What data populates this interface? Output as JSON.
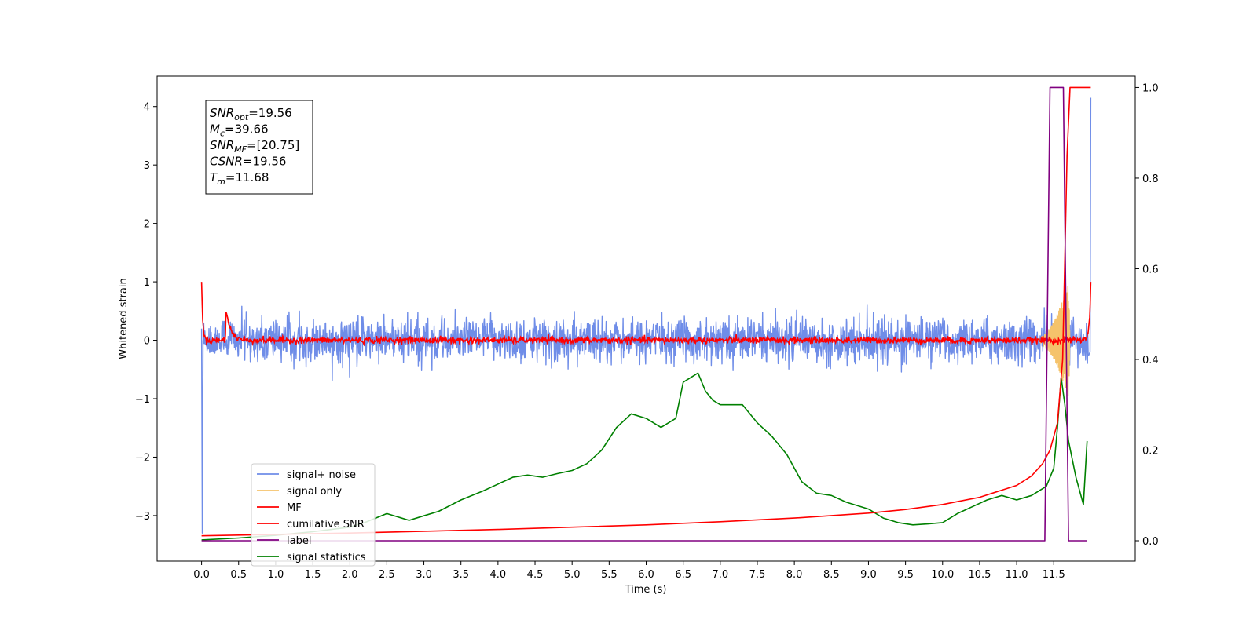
{
  "chart_data": {
    "type": "line",
    "xlabel": "Time (s)",
    "ylabel": "Whitened strain",
    "xlim": [
      -0.6,
      12.6
    ],
    "ylim": [
      -3.78,
      4.52
    ],
    "y2lim": [
      -0.045,
      1.025
    ],
    "x_ticks": [
      0.0,
      0.5,
      1.0,
      1.5,
      2.0,
      2.5,
      3.0,
      3.5,
      4.0,
      4.5,
      5.0,
      5.5,
      6.0,
      6.5,
      7.0,
      7.5,
      8.0,
      8.5,
      9.0,
      9.5,
      10.0,
      10.5,
      11.0,
      11.5
    ],
    "x_tick_labels": [
      "0.0",
      "0.5",
      "1.0",
      "1.5",
      "2.0",
      "2.5",
      "3.0",
      "3.5",
      "4.0",
      "4.5",
      "5.0",
      "5.5",
      "6.0",
      "6.5",
      "7.0",
      "7.5",
      "8.0",
      "8.5",
      "9.0",
      "9.5",
      "10.0",
      "10.5",
      "11.0",
      "11.5"
    ],
    "y_ticks": [
      -3,
      -2,
      -1,
      0,
      1,
      2,
      3,
      4
    ],
    "y_tick_labels": [
      "−3",
      "−2",
      "−1",
      "0",
      "1",
      "2",
      "3",
      "4"
    ],
    "y2_ticks": [
      0.0,
      0.2,
      0.4,
      0.6,
      0.8,
      1.0
    ],
    "y2_tick_labels": [
      "0.0",
      "0.2",
      "0.4",
      "0.6",
      "0.8",
      "1.0"
    ],
    "grid": false,
    "legend_position": "lower-left",
    "colors": {
      "signal_noise": "#6f8de8",
      "signal_only": "#f5c36b",
      "mf": "#ff0000",
      "cumulative_snr": "#ff0000",
      "label": "#800080",
      "signal_statistics": "#008000"
    },
    "annotation": {
      "lines": [
        {
          "main": "SNR",
          "sub": "opt",
          "value": "=19.56"
        },
        {
          "main": "M",
          "sub": "c",
          "value": "=39.66"
        },
        {
          "main": "SNR",
          "sub": "MF",
          "value": "=[20.75]"
        },
        {
          "main": "CSNR",
          "sub": "",
          "value": "=19.56"
        },
        {
          "main": "T",
          "sub": "m",
          "value": "=11.68"
        }
      ]
    },
    "series": [
      {
        "name": "signal+ noise",
        "axis": "left",
        "kind": "noise",
        "x_range": [
          0.0,
          12.0
        ],
        "amplitude": 0.3,
        "envelope_max": 1.0,
        "envelope_min": -0.85,
        "start_spike": -3.3,
        "end_spike": 4.15
      },
      {
        "name": "signal only",
        "axis": "left",
        "kind": "chirp",
        "x_range": [
          11.2,
          11.72
        ],
        "peak_amplitude": 1.1
      },
      {
        "name": "MF",
        "axis": "left",
        "kind": "mf",
        "x_range": [
          0.0,
          12.0
        ],
        "start_value": 1.0,
        "bump_x": 0.32,
        "bump_value": 0.62,
        "end_value": 1.0
      },
      {
        "name": "cumilative SNR",
        "axis": "right",
        "x": [
          0.0,
          1.0,
          2.0,
          3.0,
          4.0,
          5.0,
          6.0,
          7.0,
          8.0,
          9.0,
          9.5,
          10.0,
          10.5,
          11.0,
          11.2,
          11.35,
          11.45,
          11.55,
          11.62,
          11.68,
          11.72,
          12.0
        ],
        "values": [
          0.011,
          0.014,
          0.017,
          0.021,
          0.025,
          0.03,
          0.035,
          0.042,
          0.05,
          0.061,
          0.069,
          0.08,
          0.096,
          0.122,
          0.143,
          0.17,
          0.2,
          0.26,
          0.4,
          0.85,
          1.0,
          1.0
        ]
      },
      {
        "name": "label",
        "axis": "right",
        "x": [
          0.0,
          11.38,
          11.45,
          11.63,
          11.7,
          11.95
        ],
        "values": [
          0.0,
          0.0,
          1.0,
          1.0,
          0.0,
          0.0
        ]
      },
      {
        "name": "signal statistics",
        "axis": "right",
        "x": [
          0.0,
          0.5,
          1.0,
          1.5,
          2.0,
          2.2,
          2.5,
          2.8,
          3.0,
          3.2,
          3.5,
          3.8,
          4.0,
          4.2,
          4.4,
          4.6,
          4.8,
          5.0,
          5.2,
          5.4,
          5.6,
          5.8,
          6.0,
          6.2,
          6.4,
          6.5,
          6.7,
          6.8,
          6.9,
          7.0,
          7.1,
          7.3,
          7.5,
          7.7,
          7.9,
          8.1,
          8.3,
          8.5,
          8.7,
          9.0,
          9.2,
          9.4,
          9.6,
          9.8,
          10.0,
          10.2,
          10.4,
          10.6,
          10.8,
          11.0,
          11.2,
          11.4,
          11.5,
          11.55,
          11.6,
          11.65,
          11.7,
          11.8,
          11.9,
          11.95
        ],
        "values": [
          0.002,
          0.006,
          0.012,
          0.02,
          0.03,
          0.04,
          0.06,
          0.045,
          0.055,
          0.065,
          0.09,
          0.11,
          0.125,
          0.14,
          0.145,
          0.14,
          0.148,
          0.155,
          0.17,
          0.2,
          0.25,
          0.28,
          0.27,
          0.25,
          0.27,
          0.35,
          0.37,
          0.33,
          0.31,
          0.3,
          0.3,
          0.3,
          0.26,
          0.23,
          0.19,
          0.13,
          0.105,
          0.1,
          0.085,
          0.07,
          0.05,
          0.04,
          0.035,
          0.037,
          0.04,
          0.06,
          0.075,
          0.09,
          0.1,
          0.09,
          0.1,
          0.12,
          0.16,
          0.25,
          0.36,
          0.3,
          0.22,
          0.14,
          0.08,
          0.22
        ]
      }
    ]
  }
}
